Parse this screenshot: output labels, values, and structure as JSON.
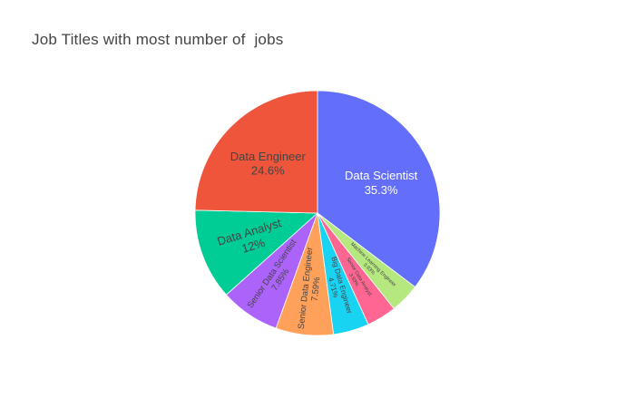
{
  "chart_data": {
    "type": "pie",
    "title": "Job Titles with most number of  jobs",
    "slices": [
      {
        "label": "Data Scientist",
        "value": 35.3,
        "pct_text": "35.3%",
        "color": "#636efa",
        "text_color": "#ffffff"
      },
      {
        "label": "Machine Learning Engineer",
        "value": 3.93,
        "pct_text": "3.93%",
        "color": "#b6e880",
        "text_color": "#444444"
      },
      {
        "label": "Senior Data Analyst",
        "value": 3.93,
        "pct_text": "3.93%",
        "color": "#ff6692",
        "text_color": "#444444"
      },
      {
        "label": "Big Data Engineer",
        "value": 4.71,
        "pct_text": "4.71%",
        "color": "#19d3f3",
        "text_color": "#444444"
      },
      {
        "label": "Senior Data Engineer",
        "value": 7.59,
        "pct_text": "7.59%",
        "color": "#ffa15a",
        "text_color": "#444444"
      },
      {
        "label": "Senior Data Scientist",
        "value": 7.85,
        "pct_text": "7.85%",
        "color": "#ab63fa",
        "text_color": "#444444"
      },
      {
        "label": "Data Analyst",
        "value": 12,
        "pct_text": "12%",
        "color": "#00cc96",
        "text_color": "#444444"
      },
      {
        "label": "Data Engineer",
        "value": 24.6,
        "pct_text": "24.6%",
        "color": "#ef553b",
        "text_color": "#444444"
      }
    ]
  }
}
